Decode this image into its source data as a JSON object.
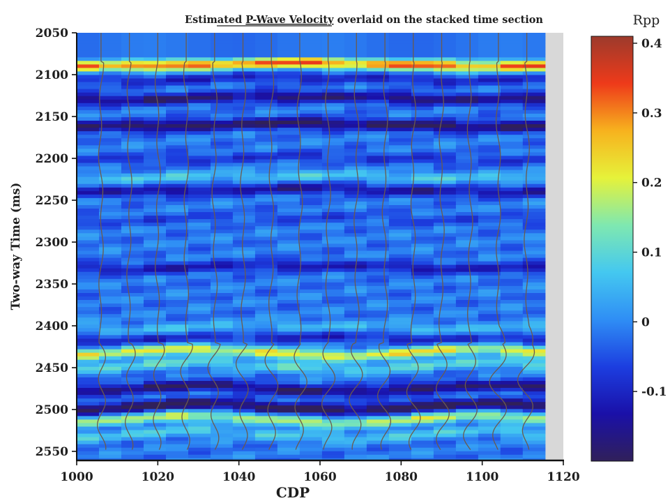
{
  "chart_data": {
    "type": "heatmap",
    "title_parts": {
      "pre": "Estimated ",
      "underlined": "P-Wave Velocity",
      "post": " overlaid on the stacked time section"
    },
    "xlabel": "CDP",
    "ylabel": "Two-way Time (ms)",
    "xlim": [
      1000,
      1120
    ],
    "ylim": [
      2050,
      2560
    ],
    "x_ticks": [
      1000,
      1020,
      1040,
      1060,
      1080,
      1100,
      1120
    ],
    "y_ticks": [
      2050,
      2100,
      2150,
      2200,
      2250,
      2300,
      2350,
      2400,
      2450,
      2500,
      2550
    ],
    "colorbar": {
      "label": "Rpp",
      "range": [
        -0.2,
        0.41
      ],
      "ticks": [
        0.4,
        0.3,
        0.2,
        0.1,
        0,
        -0.1
      ],
      "tick_labels": [
        "0.4",
        "0.3",
        "0.2",
        "0.1",
        "0",
        "-0.1"
      ],
      "colors": [
        "#30205a",
        "#1a10a8",
        "#1c3ee0",
        "#2f8ef5",
        "#44c8f0",
        "#7fe8b0",
        "#e6f23a",
        "#f7b21e",
        "#ee3a1a",
        "#9c3a2c"
      ]
    },
    "heatmap_cdp_range": [
      1000,
      1115
    ],
    "overlay_traces_cdp": [
      1006,
      1013,
      1020,
      1027,
      1034,
      1041,
      1048,
      1055,
      1062,
      1069,
      1076,
      1083,
      1090,
      1097,
      1104,
      1111
    ],
    "reflectors": [
      {
        "time": 2088,
        "rpp": 0.32
      },
      {
        "time": 2105,
        "rpp": -0.08
      },
      {
        "time": 2128,
        "rpp": -0.15
      },
      {
        "time": 2160,
        "rpp": -0.18
      },
      {
        "time": 2200,
        "rpp": -0.06
      },
      {
        "time": 2222,
        "rpp": 0.08
      },
      {
        "time": 2238,
        "rpp": -0.12
      },
      {
        "time": 2272,
        "rpp": -0.04
      },
      {
        "time": 2330,
        "rpp": -0.1
      },
      {
        "time": 2402,
        "rpp": 0.06
      },
      {
        "time": 2415,
        "rpp": -0.08
      },
      {
        "time": 2432,
        "rpp": 0.22
      },
      {
        "time": 2448,
        "rpp": 0.1
      },
      {
        "time": 2475,
        "rpp": -0.16
      },
      {
        "time": 2497,
        "rpp": -0.2
      },
      {
        "time": 2512,
        "rpp": 0.18
      },
      {
        "time": 2530,
        "rpp": 0.08
      }
    ]
  }
}
